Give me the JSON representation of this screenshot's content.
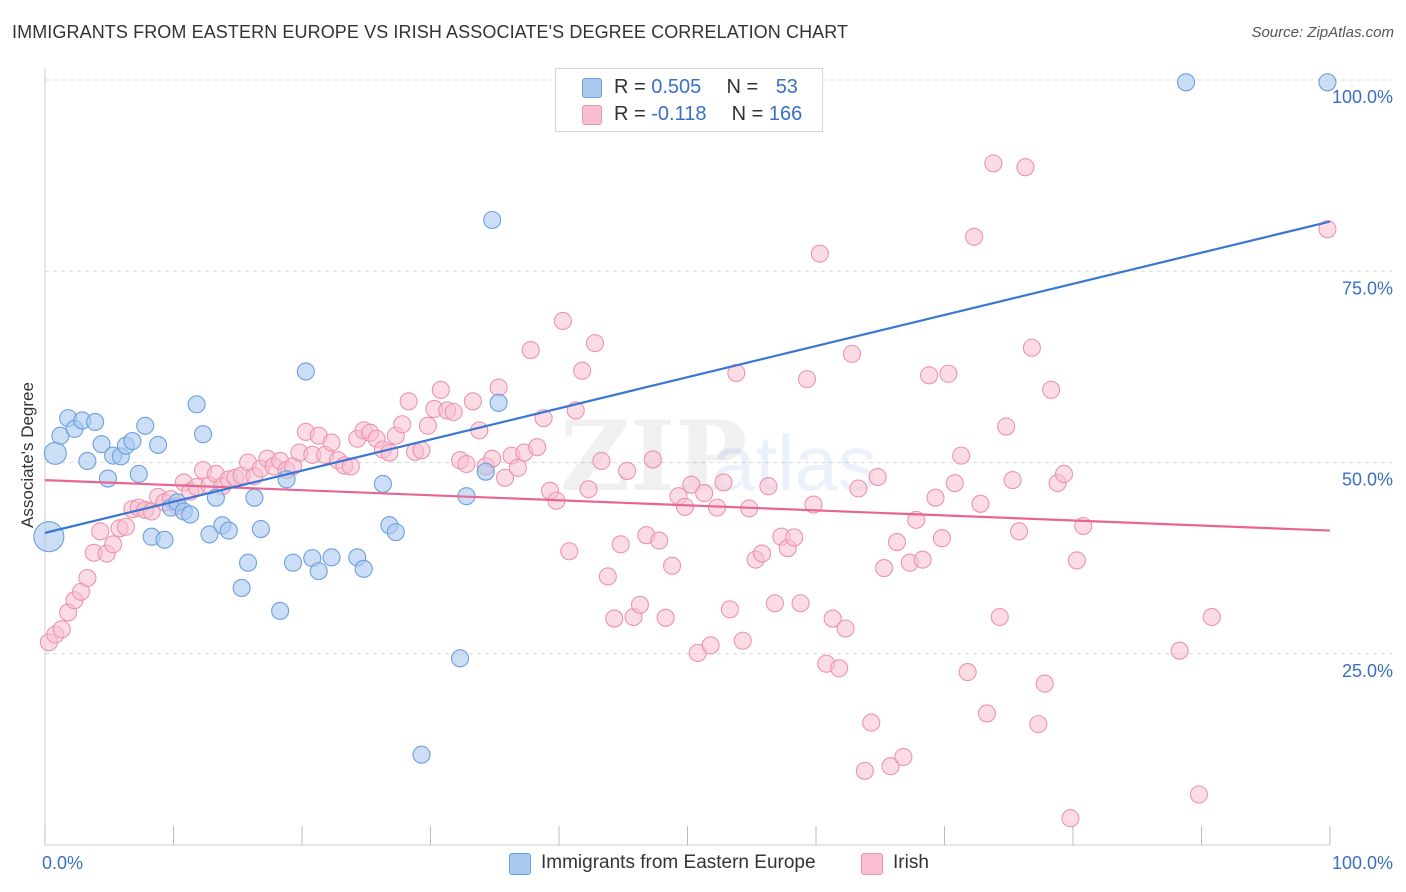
{
  "title": "IMMIGRANTS FROM EASTERN EUROPE VS IRISH ASSOCIATE'S DEGREE CORRELATION CHART",
  "source": "Source: ZipAtlas.com",
  "watermark": "ZIPatlas",
  "colors": {
    "blue_fill": "#a9c8ee",
    "blue_stroke": "#6d9fe0",
    "blue_line": "#3a76d4",
    "pink_fill": "#f7bfd0",
    "pink_stroke": "#ec93ae",
    "pink_line": "#e86593",
    "axis_text": "#3a6fc4",
    "grid": "#d9d9d9"
  },
  "legend": {
    "rows": [
      {
        "r_label": "R = ",
        "r_value": "0.505",
        "n_label": "N = ",
        "n_value": "53"
      },
      {
        "r_label": "R = ",
        "r_value": "-0.118",
        "n_label": "N = ",
        "n_value": "166"
      }
    ]
  },
  "bottom_legend": {
    "items": [
      "Immigrants from Eastern Europe",
      "Irish"
    ]
  },
  "chart_data": {
    "type": "scatter",
    "title": "IMMIGRANTS FROM EASTERN EUROPE VS IRISH ASSOCIATE'S DEGREE CORRELATION CHART",
    "xlabel": "",
    "ylabel": "Associate's Degree",
    "xlim": [
      0,
      100
    ],
    "ylim": [
      0,
      100
    ],
    "x_tick_labels": [
      "0.0%",
      "100.0%"
    ],
    "y_tick_labels": [
      "100.0%",
      "75.0%",
      "50.0%",
      "25.0%"
    ],
    "y_ticks": [
      100,
      75,
      50,
      25
    ],
    "grid": true,
    "series": [
      {
        "name": "Immigrants from Eastern Europe",
        "regression": {
          "x": [
            0,
            100
          ],
          "y": [
            40.8,
            81.5
          ]
        },
        "points": [
          [
            0.3,
            40.3
          ],
          [
            0.8,
            51.2
          ],
          [
            1.2,
            53.5
          ],
          [
            1.8,
            55.8
          ],
          [
            2.3,
            54.4
          ],
          [
            2.9,
            55.5
          ],
          [
            3.3,
            50.2
          ],
          [
            3.9,
            55.3
          ],
          [
            4.4,
            52.4
          ],
          [
            4.9,
            47.9
          ],
          [
            5.3,
            50.9
          ],
          [
            5.9,
            50.8
          ],
          [
            6.3,
            52.2
          ],
          [
            6.8,
            52.8
          ],
          [
            7.3,
            48.5
          ],
          [
            7.8,
            54.8
          ],
          [
            8.3,
            40.3
          ],
          [
            8.8,
            52.3
          ],
          [
            9.3,
            39.9
          ],
          [
            9.8,
            44.1
          ],
          [
            10.3,
            44.8
          ],
          [
            10.8,
            43.6
          ],
          [
            11.3,
            43.2
          ],
          [
            11.8,
            57.6
          ],
          [
            12.3,
            53.7
          ],
          [
            12.8,
            40.6
          ],
          [
            13.3,
            45.4
          ],
          [
            13.8,
            41.8
          ],
          [
            14.3,
            41.1
          ],
          [
            15.3,
            33.6
          ],
          [
            15.8,
            36.9
          ],
          [
            16.3,
            45.4
          ],
          [
            16.8,
            41.3
          ],
          [
            18.3,
            30.6
          ],
          [
            18.8,
            47.8
          ],
          [
            19.3,
            36.9
          ],
          [
            20.3,
            61.9
          ],
          [
            20.8,
            37.5
          ],
          [
            21.3,
            35.8
          ],
          [
            22.3,
            37.6
          ],
          [
            24.3,
            37.6
          ],
          [
            24.8,
            36.1
          ],
          [
            26.3,
            47.2
          ],
          [
            26.8,
            41.8
          ],
          [
            27.3,
            40.9
          ],
          [
            29.3,
            11.8
          ],
          [
            32.3,
            24.4
          ],
          [
            32.8,
            45.6
          ],
          [
            34.3,
            48.8
          ],
          [
            34.8,
            81.7
          ],
          [
            35.3,
            57.8
          ],
          [
            88.8,
            99.7
          ],
          [
            99.8,
            99.7
          ]
        ]
      },
      {
        "name": "Irish",
        "regression": {
          "x": [
            0,
            100
          ],
          "y": [
            47.7,
            41.1
          ]
        },
        "points": [
          [
            0.3,
            26.5
          ],
          [
            0.8,
            27.5
          ],
          [
            1.3,
            28.2
          ],
          [
            1.8,
            30.4
          ],
          [
            2.3,
            32.0
          ],
          [
            2.8,
            33.1
          ],
          [
            3.3,
            34.9
          ],
          [
            3.8,
            38.2
          ],
          [
            4.3,
            41.0
          ],
          [
            4.8,
            38.1
          ],
          [
            5.3,
            39.3
          ],
          [
            5.8,
            41.4
          ],
          [
            6.3,
            41.6
          ],
          [
            6.8,
            43.9
          ],
          [
            7.3,
            44.1
          ],
          [
            7.8,
            43.8
          ],
          [
            8.3,
            43.6
          ],
          [
            8.8,
            45.5
          ],
          [
            9.3,
            44.8
          ],
          [
            9.8,
            45.2
          ],
          [
            10.3,
            44.3
          ],
          [
            10.8,
            47.4
          ],
          [
            11.3,
            46.2
          ],
          [
            11.8,
            46.8
          ],
          [
            12.3,
            49.0
          ],
          [
            12.8,
            47.0
          ],
          [
            13.3,
            48.5
          ],
          [
            13.8,
            46.9
          ],
          [
            14.3,
            47.8
          ],
          [
            14.8,
            48.0
          ],
          [
            15.3,
            48.3
          ],
          [
            15.8,
            50.0
          ],
          [
            16.3,
            48.2
          ],
          [
            16.8,
            49.2
          ],
          [
            17.3,
            50.5
          ],
          [
            17.8,
            49.5
          ],
          [
            18.3,
            50.2
          ],
          [
            18.8,
            49.0
          ],
          [
            19.3,
            49.5
          ],
          [
            19.8,
            51.3
          ],
          [
            20.3,
            54.0
          ],
          [
            20.8,
            51.0
          ],
          [
            21.3,
            53.5
          ],
          [
            21.8,
            51.0
          ],
          [
            22.3,
            52.6
          ],
          [
            22.8,
            50.3
          ],
          [
            23.3,
            49.6
          ],
          [
            23.8,
            49.5
          ],
          [
            24.3,
            53.1
          ],
          [
            24.8,
            54.2
          ],
          [
            25.3,
            53.9
          ],
          [
            25.8,
            53.1
          ],
          [
            26.3,
            51.7
          ],
          [
            26.8,
            51.3
          ],
          [
            27.3,
            53.5
          ],
          [
            27.8,
            55.0
          ],
          [
            28.3,
            58.0
          ],
          [
            28.8,
            51.4
          ],
          [
            29.3,
            51.6
          ],
          [
            29.8,
            54.8
          ],
          [
            30.3,
            57.0
          ],
          [
            30.8,
            59.5
          ],
          [
            31.3,
            56.8
          ],
          [
            31.8,
            56.6
          ],
          [
            32.3,
            50.3
          ],
          [
            32.8,
            49.8
          ],
          [
            33.3,
            58.0
          ],
          [
            33.8,
            54.2
          ],
          [
            34.3,
            49.5
          ],
          [
            34.8,
            50.5
          ],
          [
            35.3,
            59.8
          ],
          [
            35.8,
            48.0
          ],
          [
            36.3,
            50.9
          ],
          [
            36.8,
            49.3
          ],
          [
            37.3,
            51.3
          ],
          [
            37.8,
            64.7
          ],
          [
            38.3,
            52.0
          ],
          [
            38.8,
            55.8
          ],
          [
            39.3,
            46.3
          ],
          [
            39.8,
            45.0
          ],
          [
            40.3,
            68.5
          ],
          [
            40.8,
            38.4
          ],
          [
            41.3,
            56.8
          ],
          [
            41.8,
            62.0
          ],
          [
            42.3,
            46.5
          ],
          [
            42.8,
            65.6
          ],
          [
            43.3,
            50.2
          ],
          [
            43.8,
            35.1
          ],
          [
            44.3,
            29.6
          ],
          [
            44.8,
            39.3
          ],
          [
            45.3,
            48.9
          ],
          [
            45.8,
            29.8
          ],
          [
            46.3,
            31.4
          ],
          [
            46.8,
            40.5
          ],
          [
            47.3,
            50.4
          ],
          [
            47.8,
            39.8
          ],
          [
            48.3,
            29.7
          ],
          [
            48.8,
            36.5
          ],
          [
            49.3,
            45.6
          ],
          [
            49.8,
            44.2
          ],
          [
            50.3,
            47.1
          ],
          [
            50.8,
            25.1
          ],
          [
            51.3,
            46.0
          ],
          [
            51.8,
            26.1
          ],
          [
            52.3,
            44.1
          ],
          [
            52.8,
            47.4
          ],
          [
            53.3,
            30.8
          ],
          [
            53.8,
            61.7
          ],
          [
            54.3,
            26.7
          ],
          [
            54.8,
            44.0
          ],
          [
            55.3,
            37.3
          ],
          [
            55.8,
            38.1
          ],
          [
            56.3,
            46.9
          ],
          [
            56.8,
            31.6
          ],
          [
            57.3,
            40.3
          ],
          [
            57.8,
            38.8
          ],
          [
            58.3,
            40.2
          ],
          [
            58.8,
            31.6
          ],
          [
            59.3,
            60.9
          ],
          [
            59.8,
            44.5
          ],
          [
            60.3,
            77.3
          ],
          [
            60.8,
            23.7
          ],
          [
            61.3,
            29.6
          ],
          [
            61.8,
            23.1
          ],
          [
            62.3,
            28.3
          ],
          [
            62.8,
            64.2
          ],
          [
            63.3,
            46.6
          ],
          [
            63.8,
            9.7
          ],
          [
            64.3,
            16.0
          ],
          [
            64.8,
            48.1
          ],
          [
            65.3,
            36.2
          ],
          [
            65.8,
            10.3
          ],
          [
            66.3,
            39.6
          ],
          [
            66.8,
            11.5
          ],
          [
            67.3,
            36.9
          ],
          [
            67.8,
            42.5
          ],
          [
            68.3,
            37.3
          ],
          [
            68.8,
            61.4
          ],
          [
            69.3,
            45.4
          ],
          [
            69.8,
            40.1
          ],
          [
            70.3,
            61.6
          ],
          [
            70.8,
            47.3
          ],
          [
            71.3,
            50.9
          ],
          [
            71.8,
            22.6
          ],
          [
            72.3,
            79.5
          ],
          [
            72.8,
            44.6
          ],
          [
            73.3,
            17.2
          ],
          [
            73.8,
            89.1
          ],
          [
            74.3,
            29.8
          ],
          [
            74.8,
            54.7
          ],
          [
            75.3,
            47.7
          ],
          [
            75.8,
            41.0
          ],
          [
            76.3,
            88.6
          ],
          [
            76.8,
            65.0
          ],
          [
            77.3,
            15.8
          ],
          [
            77.8,
            21.1
          ],
          [
            78.3,
            59.5
          ],
          [
            78.8,
            47.3
          ],
          [
            79.3,
            48.5
          ],
          [
            79.8,
            3.5
          ],
          [
            80.3,
            37.2
          ],
          [
            80.8,
            41.7
          ],
          [
            88.3,
            25.4
          ],
          [
            89.8,
            6.6
          ],
          [
            90.8,
            29.8
          ],
          [
            99.8,
            80.5
          ]
        ]
      }
    ]
  }
}
